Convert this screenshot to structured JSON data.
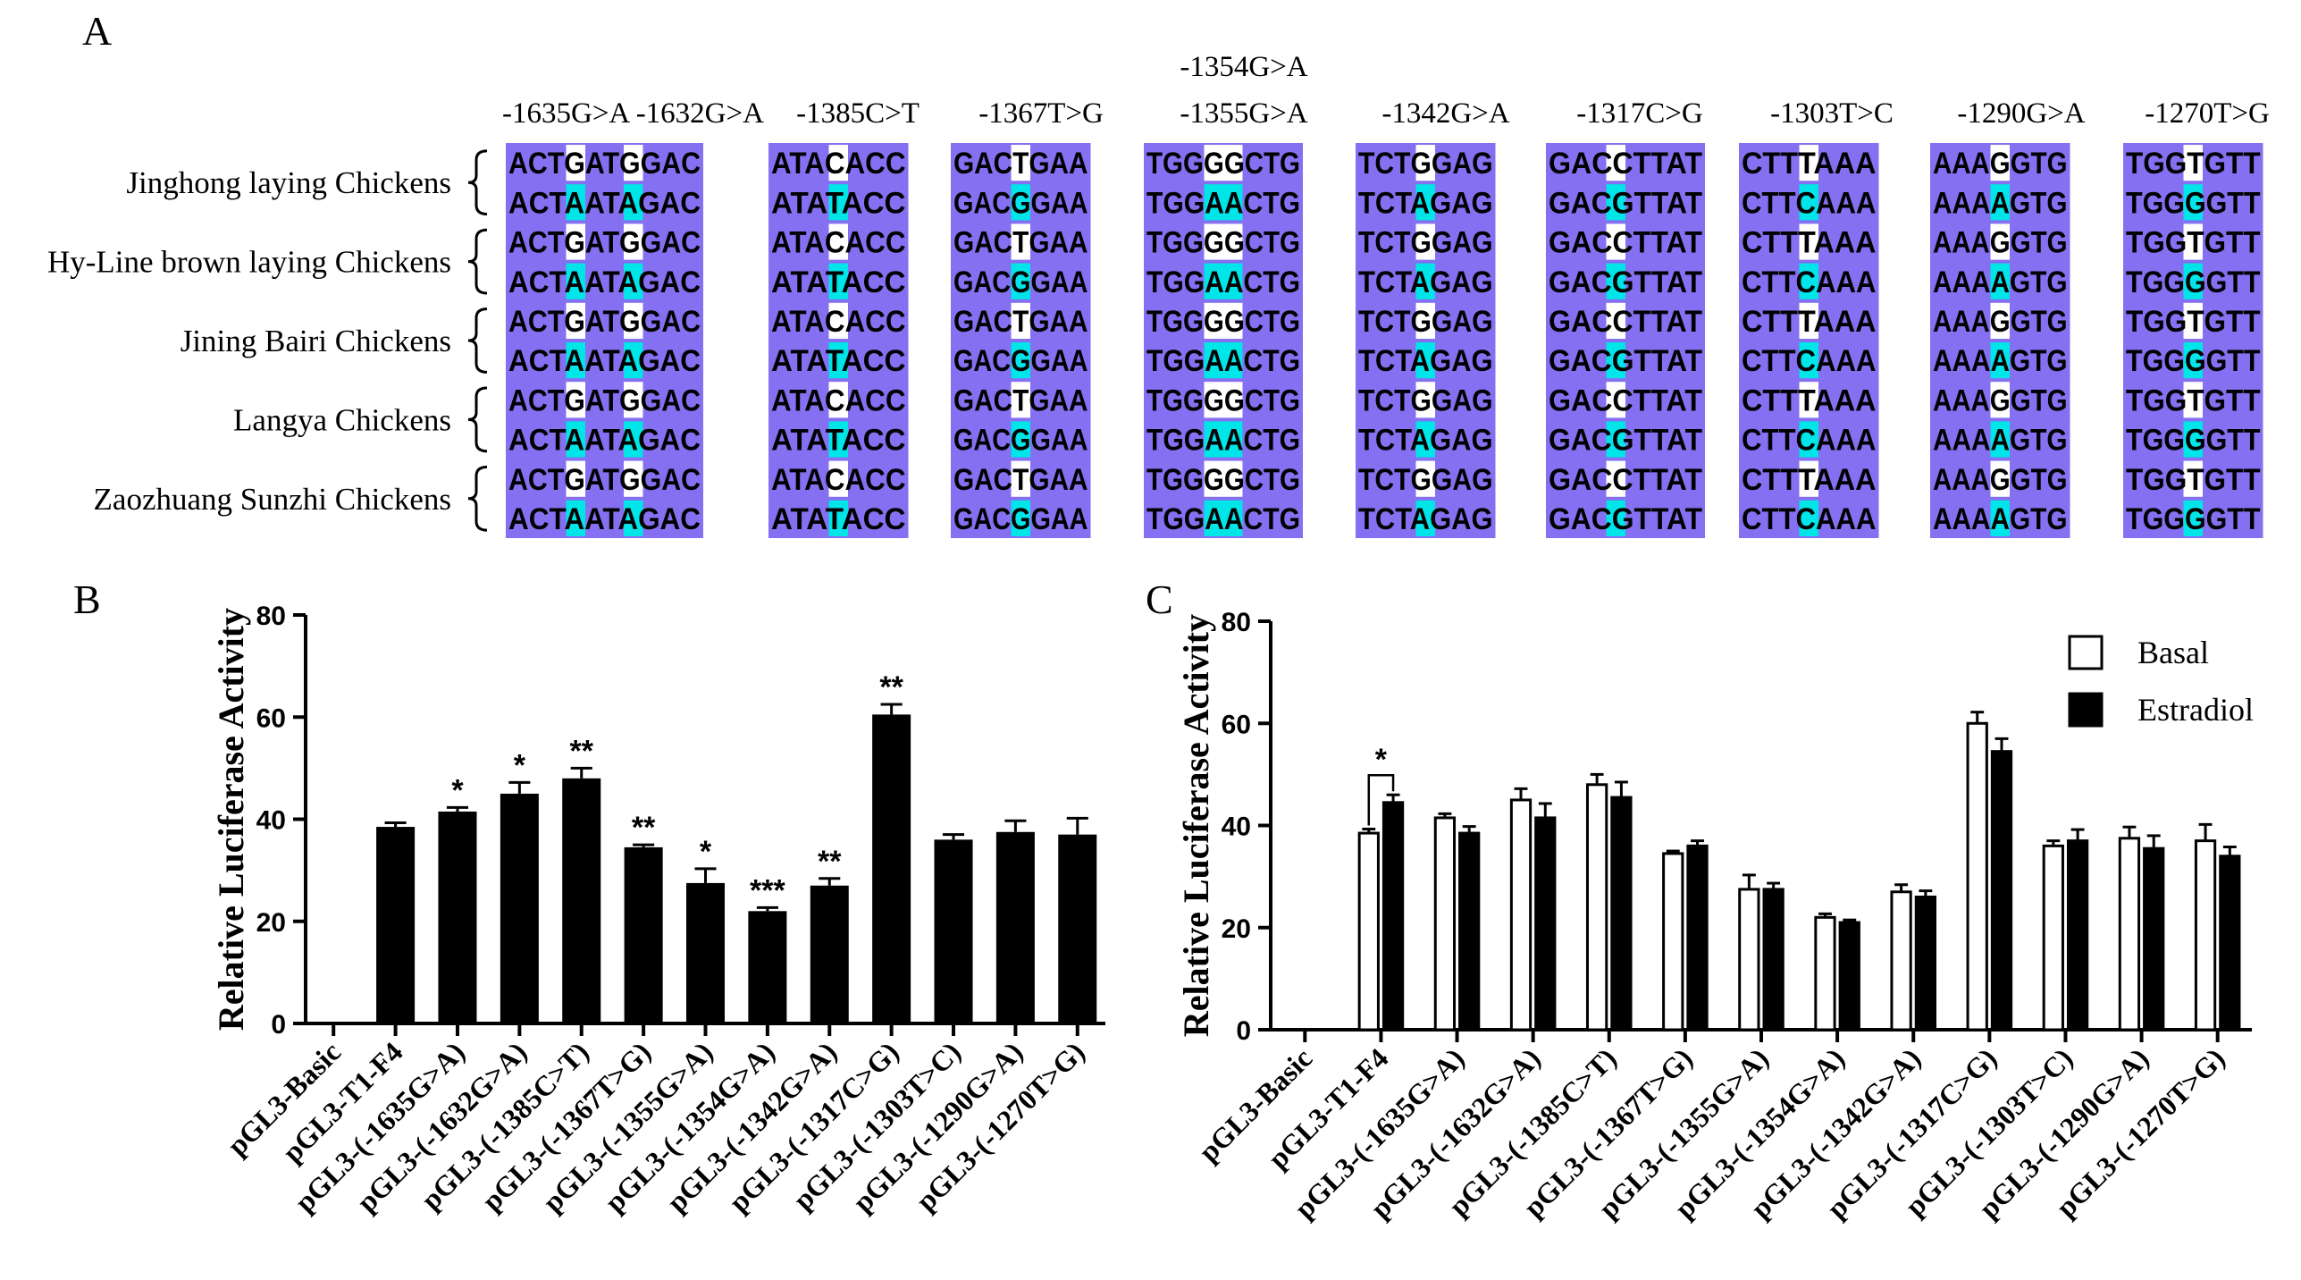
{
  "panels": {
    "a": "A",
    "b": "B",
    "c": "C"
  },
  "alignment": {
    "breeds": [
      "Jinghong laying Chickens",
      "Hy-Line brown laying Chickens",
      "Jining Bairi Chickens",
      "Langya Chickens",
      "Zaozhuang Sunzhi Chickens"
    ],
    "top_label": "-1354G>A",
    "blocks": [
      {
        "label": "-1635G>A -1632G>A",
        "ref": "ACTGATGGAC",
        "alt": "ACTAATAGAC",
        "snps": [
          3,
          6
        ]
      },
      {
        "label": "-1385C>T",
        "ref": "ATACACC",
        "alt": "ATATACC",
        "snps": [
          3
        ]
      },
      {
        "label": "-1367T>G",
        "ref": "GACTGAA",
        "alt": "GACGGAA",
        "snps": [
          3
        ]
      },
      {
        "label": "-1355G>A",
        "ref": "TGGGGCTG",
        "alt": "TGGAACTG",
        "snps": [
          3,
          4
        ]
      },
      {
        "label": "-1342G>A",
        "ref": "TCTGGAG",
        "alt": "TCTAGAG",
        "snps": [
          3
        ]
      },
      {
        "label": "-1317C>G",
        "ref": "GACCTTAT",
        "alt": "GACGTTAT",
        "snps": [
          3
        ]
      },
      {
        "label": "-1303T>C",
        "ref": "CTTTAAA",
        "alt": "CTTCAAA",
        "snps": [
          3
        ]
      },
      {
        "label": "-1290G>A",
        "ref": "AAAGGTG",
        "alt": "AAAAGTG",
        "snps": [
          3
        ]
      },
      {
        "label": "-1270T>G",
        "ref": "TGGTGTT",
        "alt": "TGGGGTT",
        "snps": [
          3
        ]
      }
    ],
    "colors": {
      "background": "#8470f0",
      "snp_ref": "#ffffff",
      "snp_alt": "#00e5e8"
    }
  },
  "chart_data": [
    {
      "type": "bar",
      "panel": "B",
      "ylabel": "Relative Luciferase Activity",
      "ylim": [
        0,
        80
      ],
      "yticks": [
        0,
        20,
        40,
        60,
        80
      ],
      "categories": [
        "pGL3-Basic",
        "pGL3-T1-F4",
        "pGL3-(-1635G>A)",
        "pGL3-(-1632G>A)",
        "pGL3-(-1385C>T)",
        "pGL3-(-1367T>G)",
        "pGL3-(-1355G>A)",
        "pGL3-(-1354G>A)",
        "pGL3-(-1342G>A)",
        "pGL3-(-1317C>G)",
        "pGL3-(-1303T>C)",
        "pGL3-(-1290G>A)",
        "pGL3-(-1270T>G)"
      ],
      "values": [
        0,
        38.5,
        41.5,
        45,
        48,
        34.5,
        27.5,
        22,
        27,
        60.5,
        36,
        37.5,
        37
      ],
      "errors": [
        0,
        0.8,
        0.8,
        2.2,
        2.0,
        0.5,
        2.8,
        0.7,
        1.4,
        2.0,
        1.0,
        2.2,
        3.2
      ],
      "significance": [
        "",
        "",
        "*",
        "*",
        "**",
        "**",
        "*",
        "***",
        "**",
        "**",
        "",
        "",
        ""
      ],
      "color": "#000000"
    },
    {
      "type": "bar",
      "panel": "C",
      "ylabel": "Relative Luciferase Activity",
      "ylim": [
        0,
        80
      ],
      "yticks": [
        0,
        20,
        40,
        60,
        80
      ],
      "categories": [
        "pGL3-Basic",
        "pGL3-T1-F4",
        "pGL3-(-1635G>A)",
        "pGL3-(-1632G>A)",
        "pGL3-(-1385C>T)",
        "pGL3-(-1367T>G)",
        "pGL3-(-1355G>A)",
        "pGL3-(-1354G>A)",
        "pGL3-(-1342G>A)",
        "pGL3-(-1317C>G)",
        "pGL3-(-1303T>C)",
        "pGL3-(-1290G>A)",
        "pGL3-(-1270T>G)"
      ],
      "series": [
        {
          "name": "Basal",
          "fill": "#ffffff",
          "values": [
            0,
            38.5,
            41.5,
            45,
            48,
            34.5,
            27.5,
            22,
            27,
            60,
            36,
            37.5,
            37
          ],
          "errors": [
            0,
            0.8,
            0.8,
            2.2,
            2.0,
            0.5,
            2.8,
            0.7,
            1.4,
            2.2,
            1.0,
            2.2,
            3.2
          ]
        },
        {
          "name": "Estradiol",
          "fill": "#000000",
          "values": [
            0,
            44.5,
            38.5,
            41.5,
            45.5,
            36,
            27.5,
            21,
            26,
            54.5,
            37,
            35.5,
            34
          ],
          "errors": [
            0,
            1.5,
            1.3,
            2.8,
            3.0,
            1.0,
            1.2,
            0.5,
            1.2,
            2.5,
            2.2,
            2.5,
            1.8
          ]
        }
      ],
      "significance": [
        {
          "category": "pGL3-T1-F4",
          "label": "*"
        }
      ],
      "legend": "top-right"
    }
  ]
}
